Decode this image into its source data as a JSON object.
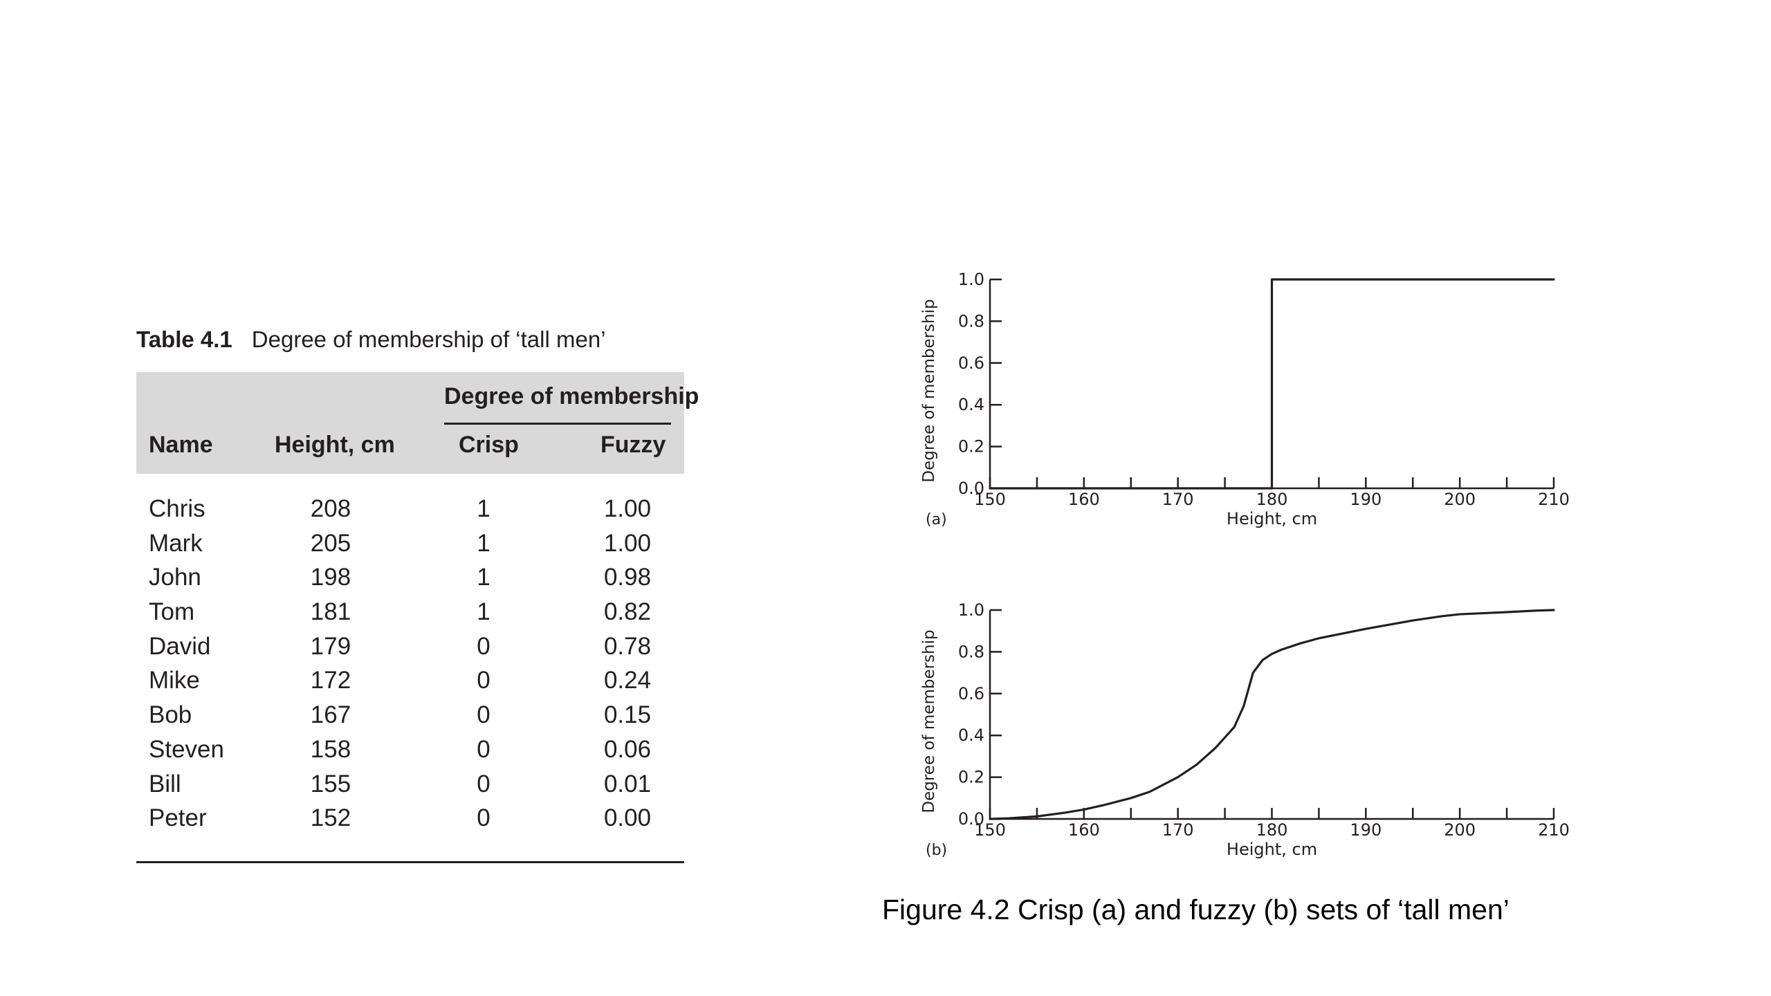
{
  "table": {
    "number": "Table 4.1",
    "caption": "Degree of membership of ‘tall men’",
    "group_header": "Degree of membership",
    "columns": [
      "Name",
      "Height, cm",
      "Crisp",
      "Fuzzy"
    ],
    "rows": [
      [
        "Chris",
        "208",
        "1",
        "1.00"
      ],
      [
        "Mark",
        "205",
        "1",
        "1.00"
      ],
      [
        "John",
        "198",
        "1",
        "0.98"
      ],
      [
        "Tom",
        "181",
        "1",
        "0.82"
      ],
      [
        "David",
        "179",
        "0",
        "0.78"
      ],
      [
        "Mike",
        "172",
        "0",
        "0.24"
      ],
      [
        "Bob",
        "167",
        "0",
        "0.15"
      ],
      [
        "Steven",
        "158",
        "0",
        "0.06"
      ],
      [
        "Bill",
        "155",
        "0",
        "0.01"
      ],
      [
        "Peter",
        "152",
        "0",
        "0.00"
      ]
    ]
  },
  "figure_caption": "Figure 4.2 Crisp (a) and fuzzy (b) sets of ‘tall men’",
  "chart_data": [
    {
      "type": "line",
      "panel_label": "(a)",
      "xlabel": "Height, cm",
      "ylabel": "Degree of membership",
      "xlim": [
        150,
        210
      ],
      "ylim": [
        0,
        1
      ],
      "x_ticks": [
        "150",
        "160",
        "170",
        "180",
        "190",
        "200",
        "210"
      ],
      "y_ticks": [
        "0.0",
        "0.2",
        "0.4",
        "0.6",
        "0.8",
        "1.0"
      ],
      "x_minor_step": 5,
      "grid": false,
      "series": [
        {
          "x": [
            150,
            180,
            180,
            210
          ],
          "y": [
            0,
            0,
            1,
            1
          ]
        }
      ],
      "line_color": "#231f20"
    },
    {
      "type": "line",
      "panel_label": "(b)",
      "xlabel": "Height, cm",
      "ylabel": "Degree of membership",
      "xlim": [
        150,
        210
      ],
      "ylim": [
        0,
        1
      ],
      "x_ticks": [
        "150",
        "160",
        "170",
        "180",
        "190",
        "200",
        "210"
      ],
      "y_ticks": [
        "0.0",
        "0.2",
        "0.4",
        "0.6",
        "0.8",
        "1.0"
      ],
      "x_minor_step": 5,
      "grid": false,
      "series": [
        {
          "x": [
            150,
            152,
            155,
            158,
            160,
            162,
            165,
            167,
            170,
            172,
            174,
            176,
            177,
            178,
            179,
            180,
            181,
            183,
            185,
            190,
            195,
            198,
            200,
            205,
            208,
            210
          ],
          "y": [
            0.0,
            0.003,
            0.012,
            0.03,
            0.045,
            0.065,
            0.1,
            0.13,
            0.2,
            0.26,
            0.34,
            0.44,
            0.54,
            0.7,
            0.76,
            0.79,
            0.81,
            0.84,
            0.865,
            0.91,
            0.95,
            0.97,
            0.98,
            0.99,
            0.997,
            1.0
          ]
        }
      ],
      "line_color": "#231f20"
    }
  ]
}
